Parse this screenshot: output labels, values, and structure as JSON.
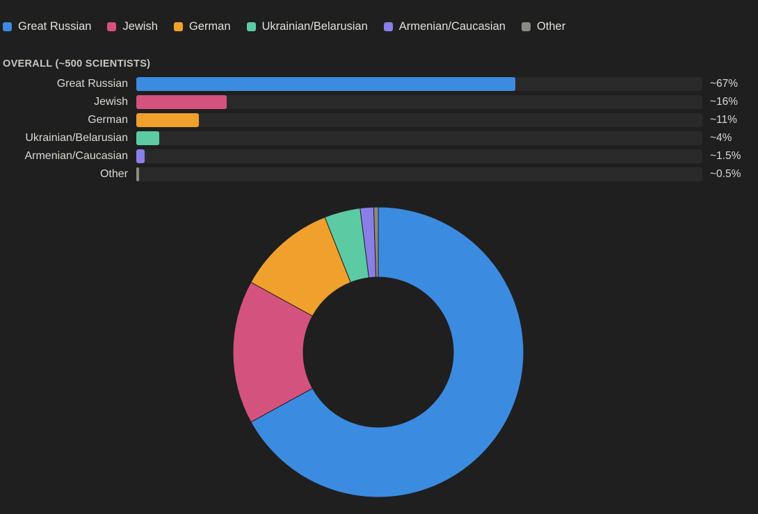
{
  "colors": {
    "background": "#1f1f1f",
    "track": "#2a2a2a",
    "great_russian": "#3b8be0",
    "jewish": "#d4537e",
    "german": "#f0a02c",
    "ukrainian_belarusian": "#5ccba4",
    "armenian_caucasian": "#8a7fe6",
    "other": "#8c8a84"
  },
  "chart_data": [
    {
      "type": "bar",
      "orientation": "horizontal",
      "title": "OVERALL (~500 SCIENTISTS)",
      "categories": [
        "Great Russian",
        "Jewish",
        "German",
        "Ukrainian/Belarusian",
        "Armenian/Caucasian",
        "Other"
      ],
      "values": [
        67,
        16,
        11,
        4,
        1.5,
        0.5
      ],
      "value_labels": [
        "~67%",
        "~16%",
        "~11%",
        "~4%",
        "~1.5%",
        "~0.5%"
      ],
      "xlim": [
        0,
        100
      ],
      "grid": false,
      "legend": {
        "placement": "top-left",
        "entries": [
          "Great Russian",
          "Jewish",
          "German",
          "Ukrainian/Belarusian",
          "Armenian/Caucasian",
          "Other"
        ]
      }
    },
    {
      "type": "pie",
      "variant": "donut",
      "categories": [
        "Great Russian",
        "Jewish",
        "German",
        "Ukrainian/Belarusian",
        "Armenian/Caucasian",
        "Other"
      ],
      "values": [
        67,
        16,
        11,
        4,
        1.5,
        0.5
      ]
    }
  ]
}
